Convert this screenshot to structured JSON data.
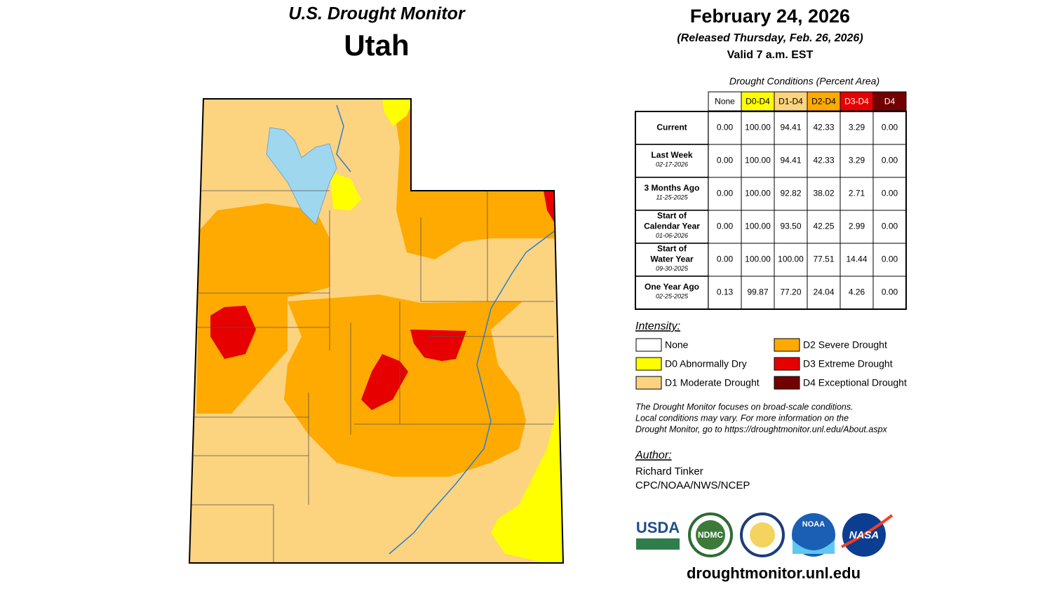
{
  "map": {
    "title": "U.S. Drought Monitor",
    "state": "Utah"
  },
  "header": {
    "date": "February 24, 2026",
    "released": "(Released Thursday, Feb. 26, 2026)",
    "valid": "Valid 7 a.m. EST"
  },
  "table": {
    "caption": "Drought Conditions (Percent Area)",
    "columns": [
      {
        "label": "None",
        "color": "#ffffff",
        "text_color": "#000000"
      },
      {
        "label": "D0-D4",
        "color": "#ffff00",
        "text_color": "#000000"
      },
      {
        "label": "D1-D4",
        "color": "#fcd37f",
        "text_color": "#000000"
      },
      {
        "label": "D2-D4",
        "color": "#ffaa00",
        "text_color": "#000000"
      },
      {
        "label": "D3-D4",
        "color": "#e60000",
        "text_color": "#ffffff"
      },
      {
        "label": "D4",
        "color": "#730000",
        "text_color": "#ffffff"
      }
    ],
    "rows": [
      {
        "label": [
          "Current"
        ],
        "values": [
          "0.00",
          "100.00",
          "94.41",
          "42.33",
          "3.29",
          "0.00"
        ]
      },
      {
        "label": [
          "Last Week"
        ],
        "date": "02-17-2026",
        "values": [
          "0.00",
          "100.00",
          "94.41",
          "42.33",
          "3.29",
          "0.00"
        ]
      },
      {
        "label": [
          "3 Months Ago"
        ],
        "date": "11-25-2025",
        "values": [
          "0.00",
          "100.00",
          "92.82",
          "38.02",
          "2.71",
          "0.00"
        ]
      },
      {
        "label": [
          "Start of",
          "Calendar Year"
        ],
        "date": "01-06-2026",
        "values": [
          "0.00",
          "100.00",
          "93.50",
          "42.25",
          "2.99",
          "0.00"
        ]
      },
      {
        "label": [
          "Start of",
          "Water Year"
        ],
        "date": "09-30-2025",
        "values": [
          "0.00",
          "100.00",
          "100.00",
          "77.51",
          "14.44",
          "0.00"
        ]
      },
      {
        "label": [
          "One Year Ago"
        ],
        "date": "02-25-2025",
        "values": [
          "0.13",
          "99.87",
          "77.20",
          "24.04",
          "4.26",
          "0.00"
        ]
      }
    ]
  },
  "legend": {
    "title": "Intensity:",
    "items": [
      {
        "label": "None",
        "color": "#ffffff"
      },
      {
        "label": "D0 Abnormally Dry",
        "color": "#ffff00"
      },
      {
        "label": "D1 Moderate Drought",
        "color": "#fcd37f"
      },
      {
        "label": "D2 Severe Drought",
        "color": "#ffaa00"
      },
      {
        "label": "D3 Extreme Drought",
        "color": "#e60000"
      },
      {
        "label": "D4 Exceptional Drought",
        "color": "#730000"
      }
    ]
  },
  "note": [
    "The Drought Monitor focuses on broad-scale conditions.",
    "Local conditions may vary. For more information on the",
    "Drought Monitor, go to https://droughtmonitor.unl.edu/About.aspx"
  ],
  "author": {
    "title": "Author:",
    "name": "Richard Tinker",
    "org": "CPC/NOAA/NWS/NCEP"
  },
  "logos": [
    "USDA",
    "NDMC",
    "NOAA",
    "NASA"
  ],
  "url": "droughtmonitor.unl.edu"
}
